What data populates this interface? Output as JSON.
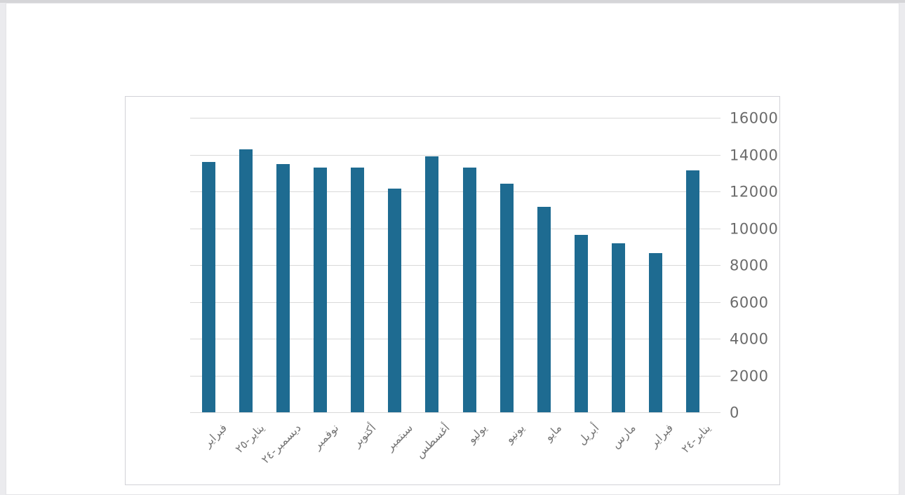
{
  "window": {
    "top_strip_color": "#d5d5d8",
    "margin_color": "#ebebee",
    "page_color": "#ffffff",
    "chart_panel_border_color": "#d2d2d7"
  },
  "chart_data": {
    "type": "bar",
    "title": "",
    "direction": "rtl",
    "categories": [
      "فبراير",
      "يناير-٢٥",
      "ديسمبر-٢٤",
      "نوفمبر",
      "أكتوبر",
      "سبتمبر",
      "أغسطس",
      "يوليو",
      "يونيو",
      "مايو",
      "أبريل",
      "مارس",
      "فبراير",
      "يناير-٢٤"
    ],
    "values": [
      13600,
      14300,
      13500,
      13300,
      13300,
      12150,
      13900,
      13300,
      12400,
      11150,
      9650,
      9200,
      8650,
      13150
    ],
    "ylim": [
      0,
      16000
    ],
    "ytick_interval": 2000,
    "yticklabels_bottom_to_top": [
      "0",
      "2000",
      "4000",
      "6000",
      "8000",
      "10000",
      "12000",
      "14000",
      "16000"
    ],
    "y_axis_side": "right",
    "x_label_rotation_deg": 45,
    "grid": true,
    "legend": "none",
    "colors": {
      "bar": "#1E6B91",
      "gridline": "#D9D9D9",
      "tick_label": "#6B6B6B",
      "x_label": "#767676"
    }
  }
}
